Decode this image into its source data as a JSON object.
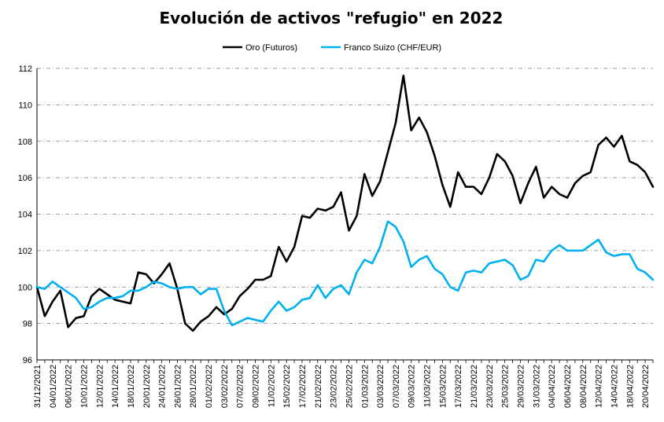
{
  "chart_data": {
    "type": "line",
    "title": "Evolución de activos \"refugio\" en 2022",
    "xlabel": "",
    "ylabel": "",
    "ylim": [
      96,
      112
    ],
    "yticks": [
      96,
      98,
      100,
      102,
      104,
      106,
      108,
      110,
      112
    ],
    "grid": true,
    "legend_position": "top-center",
    "x_tick_labels": [
      "31/12/2021",
      "04/01/2022",
      "06/01/2022",
      "10/01/2022",
      "12/01/2022",
      "14/01/2022",
      "18/01/2022",
      "20/01/2022",
      "24/01/2022",
      "26/01/2022",
      "28/01/2022",
      "01/02/2022",
      "03/02/2022",
      "07/02/2022",
      "09/02/2022",
      "11/02/2022",
      "15/02/2022",
      "17/02/2022",
      "21/02/2022",
      "23/02/2022",
      "25/02/2022",
      "01/03/2022",
      "03/03/2022",
      "07/03/2022",
      "09/03/2022",
      "11/03/2022",
      "15/03/2022",
      "17/03/2022",
      "21/03/2022",
      "23/03/2022",
      "25/03/2022",
      "29/03/2022",
      "31/03/2022",
      "04/04/2022",
      "06/04/2022",
      "08/04/2022",
      "12/04/2022",
      "14/04/2022",
      "18/04/2022",
      "20/04/2022"
    ],
    "series": [
      {
        "name": "Oro (Futuros)",
        "color": "#000000",
        "values": [
          100.0,
          98.4,
          99.2,
          99.8,
          97.8,
          98.3,
          98.4,
          99.5,
          99.9,
          99.6,
          99.3,
          99.2,
          99.1,
          100.8,
          100.7,
          100.2,
          100.7,
          101.3,
          99.9,
          98.0,
          97.6,
          98.1,
          98.4,
          98.9,
          98.5,
          98.8,
          99.5,
          99.9,
          100.4,
          100.4,
          100.6,
          102.2,
          101.4,
          102.2,
          103.9,
          103.8,
          104.3,
          104.2,
          104.4,
          105.2,
          103.1,
          103.9,
          106.2,
          105.0,
          105.8,
          107.4,
          109.0,
          111.6,
          108.6,
          109.3,
          108.5,
          107.2,
          105.6,
          104.4,
          106.3,
          105.5,
          105.5,
          105.1,
          106.0,
          107.3,
          106.9,
          106.1,
          104.6,
          105.7,
          106.6,
          104.9,
          105.5,
          105.1,
          104.9,
          105.7,
          106.1,
          106.3,
          107.8,
          108.2,
          107.7,
          108.3,
          106.9,
          106.7,
          106.3,
          105.5
        ]
      },
      {
        "name": "Franco Suizo (CHF/EUR)",
        "color": "#00b0f0",
        "values": [
          100.0,
          99.9,
          100.3,
          100.0,
          99.7,
          99.4,
          98.8,
          98.9,
          99.2,
          99.4,
          99.4,
          99.5,
          99.8,
          99.8,
          100.0,
          100.3,
          100.2,
          100.0,
          99.9,
          100.0,
          100.0,
          99.6,
          99.9,
          99.9,
          98.7,
          97.9,
          98.1,
          98.3,
          98.2,
          98.1,
          98.7,
          99.2,
          98.7,
          98.9,
          99.3,
          99.4,
          100.1,
          99.4,
          99.9,
          100.1,
          99.6,
          100.8,
          101.5,
          101.3,
          102.2,
          103.6,
          103.3,
          102.5,
          101.1,
          101.5,
          101.7,
          101.0,
          100.7,
          100.0,
          99.8,
          100.8,
          100.9,
          100.8,
          101.3,
          101.4,
          101.5,
          101.2,
          100.4,
          100.6,
          101.5,
          101.4,
          102.0,
          102.3,
          102.0,
          102.0,
          102.0,
          102.3,
          102.6,
          101.9,
          101.7,
          101.8,
          101.8,
          101.0,
          100.8,
          100.4
        ]
      }
    ]
  }
}
